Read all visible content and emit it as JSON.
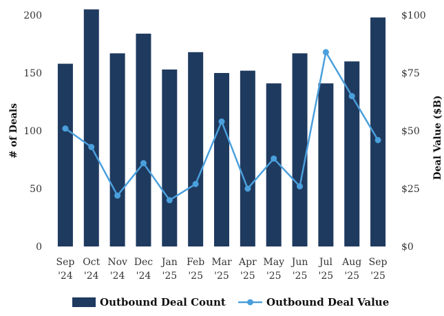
{
  "chart_data": {
    "type": "bar",
    "categories": [
      [
        "Sep",
        "'24"
      ],
      [
        "Oct",
        "'24"
      ],
      [
        "Nov",
        "'24"
      ],
      [
        "Dec",
        "'24"
      ],
      [
        "Jan",
        "'25"
      ],
      [
        "Feb",
        "'25"
      ],
      [
        "Mar",
        "'25"
      ],
      [
        "Apr",
        "'25"
      ],
      [
        "May",
        "'25"
      ],
      [
        "Jun",
        "'25"
      ],
      [
        "Jul",
        "'25"
      ],
      [
        "Aug",
        "'25"
      ],
      [
        "Sep",
        "'25"
      ]
    ],
    "series": [
      {
        "name": "Outbound Deal Count",
        "type": "bar",
        "axis": "left",
        "color": "#1f3a5f",
        "values": [
          158,
          205,
          167,
          184,
          153,
          168,
          150,
          152,
          141,
          167,
          141,
          160,
          198
        ]
      },
      {
        "name": "Outbound Deal Value",
        "type": "line",
        "axis": "right",
        "color": "#4a9fdc",
        "values": [
          51,
          43,
          22,
          36,
          20,
          27,
          54,
          25,
          38,
          26,
          84,
          65,
          46
        ]
      }
    ],
    "ylabel_left": "# of Deals",
    "ylabel_right": "Deal Value ($B)",
    "ylim_left": [
      0,
      200
    ],
    "ylim_right": [
      0,
      100
    ],
    "yticks_left": [
      "0",
      "50",
      "100",
      "150",
      "200"
    ],
    "yticks_right": [
      "$0",
      "$25",
      "$50",
      "$75",
      "$100"
    ],
    "legend": {
      "position": "bottom",
      "items": [
        "Outbound Deal Count",
        "Outbound Deal Value"
      ]
    }
  }
}
